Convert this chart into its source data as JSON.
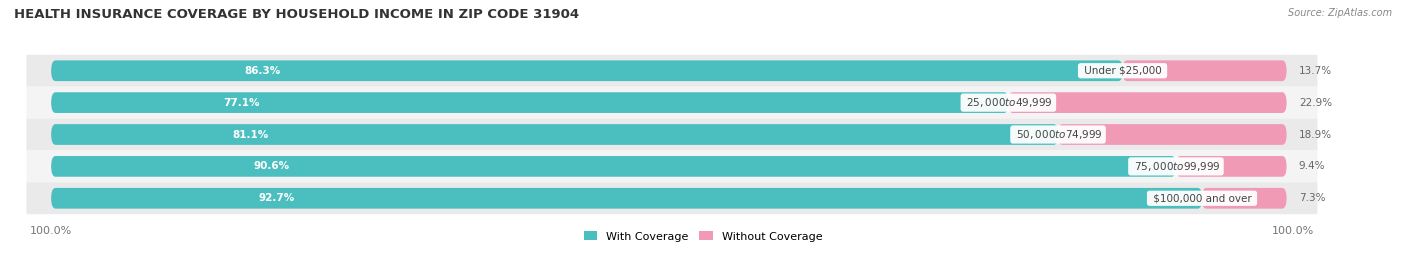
{
  "title": "HEALTH INSURANCE COVERAGE BY HOUSEHOLD INCOME IN ZIP CODE 31904",
  "source": "Source: ZipAtlas.com",
  "categories": [
    "Under $25,000",
    "$25,000 to $49,999",
    "$50,000 to $74,999",
    "$75,000 to $99,999",
    "$100,000 and over"
  ],
  "with_coverage": [
    86.3,
    77.1,
    81.1,
    90.6,
    92.7
  ],
  "without_coverage": [
    13.7,
    22.9,
    18.9,
    9.4,
    7.3
  ],
  "color_with": "#4bbfbf",
  "color_without": "#f09ab5",
  "row_bg_even": "#eaeaea",
  "row_bg_odd": "#f4f4f4",
  "legend_with": "With Coverage",
  "legend_without": "Without Coverage",
  "figsize": [
    14.06,
    2.69
  ],
  "dpi": 100,
  "bar_height": 0.62,
  "title_fontsize": 9.5,
  "label_fontsize": 8.0,
  "tick_fontsize": 8.0,
  "pct_label_fontsize": 7.5,
  "cat_label_fontsize": 7.5
}
